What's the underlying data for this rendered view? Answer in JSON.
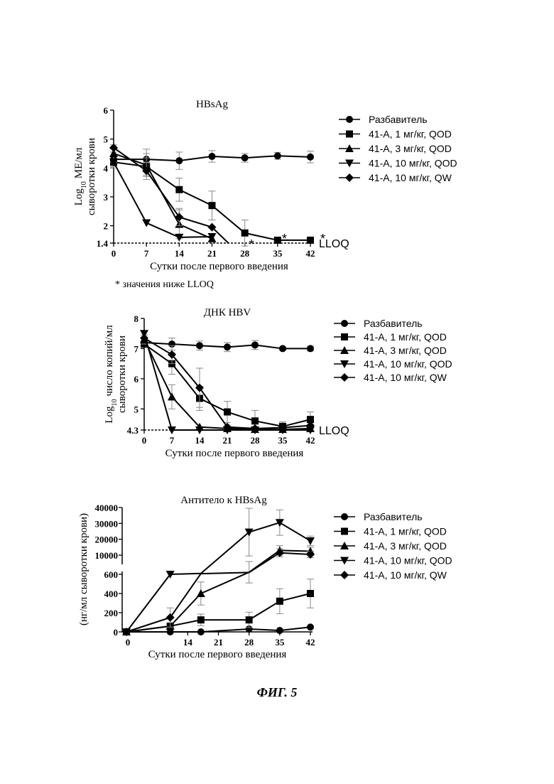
{
  "figure_caption": "ФИГ. 5",
  "chart_data": [
    {
      "type": "line",
      "title": "HBsAg",
      "ylabel_main": "ME/мл",
      "ylabel_prefix": "Log",
      "ylabel_sub": "10",
      "ylabel2": "сыворотки крови",
      "xlabel": "Сутки после первого введения",
      "footnote": "* значения ниже LLOQ",
      "lloq_label": "LLOQ",
      "x": [
        0,
        7,
        14,
        21,
        28,
        35,
        42
      ],
      "xticks": [
        "0",
        "7",
        "14",
        "21",
        "28",
        "35",
        "42"
      ],
      "yticks": [
        "1.4",
        "2",
        "3",
        "4",
        "5",
        "6"
      ],
      "ylim": [
        1.4,
        6
      ],
      "lloq": 1.4,
      "series": [
        {
          "name": "Разбавитель",
          "marker": "circle",
          "x": [
            0,
            7,
            14,
            21,
            28,
            35,
            42
          ],
          "values": [
            4.3,
            4.3,
            4.25,
            4.4,
            4.35,
            4.42,
            4.38
          ],
          "err": [
            0.25,
            0.35,
            0.3,
            0.2,
            0.15,
            0.12,
            0.2
          ]
        },
        {
          "name": "41-А, 1 мг/кг, QOD",
          "marker": "square",
          "x": [
            0,
            7,
            14,
            21,
            28,
            35,
            42
          ],
          "values": [
            4.2,
            4.05,
            3.25,
            2.7,
            1.75,
            1.5,
            1.5
          ],
          "err": [
            0.2,
            0.3,
            0.4,
            0.5,
            0.45,
            0.1,
            0.05
          ]
        },
        {
          "name": "41-А, 3 мг/кг, QOD",
          "marker": "triangle-up",
          "x": [
            0,
            7,
            14,
            21
          ],
          "values": [
            4.5,
            4.1,
            2.05,
            1.55
          ],
          "err": [
            0.3,
            0.4,
            0.5,
            0
          ]
        },
        {
          "name": "41-А, 10 мг/кг, QOD",
          "marker": "triangle-down",
          "x": [
            0,
            7,
            14,
            21
          ],
          "values": [
            4.2,
            2.1,
            1.6,
            1.62
          ],
          "err": [
            0,
            0,
            0,
            0
          ]
        },
        {
          "name": "41-А, 10 мг/кг, QW",
          "marker": "diamond",
          "x": [
            0,
            7,
            14,
            21,
            24.5
          ],
          "values": [
            4.7,
            3.9,
            2.3,
            1.95,
            1.4
          ],
          "err": [
            0,
            0.3,
            0.3,
            0,
            0
          ]
        }
      ],
      "below_lloq_marks": [
        {
          "x": 28,
          "label": "*"
        },
        {
          "x": 35,
          "label": "*"
        },
        {
          "x": 42,
          "label": "*"
        }
      ]
    },
    {
      "type": "line",
      "title": "ДНК HBV",
      "ylabel_main": "число копий/мл",
      "ylabel_prefix": "Log",
      "ylabel_sub": "10",
      "ylabel2": "сыворотки крови",
      "xlabel": "Сутки после первого введения",
      "lloq_label": "LLOQ",
      "x": [
        0,
        7,
        14,
        21,
        28,
        35,
        42
      ],
      "xticks": [
        "0",
        "7",
        "14",
        "21",
        "28",
        "35",
        "42"
      ],
      "yticks": [
        "4.3",
        "5",
        "6",
        "7",
        "8"
      ],
      "ylim": [
        4.3,
        8
      ],
      "lloq": 4.3,
      "series": [
        {
          "name": "Разбавитель",
          "marker": "circle",
          "x": [
            0,
            7,
            14,
            21,
            28,
            35,
            42
          ],
          "values": [
            7.2,
            7.15,
            7.1,
            7.05,
            7.12,
            7.0,
            7.0
          ],
          "err": [
            0.15,
            0.2,
            0.15,
            0.15,
            0.15,
            0.05,
            0.08
          ]
        },
        {
          "name": "41-А, 1 мг/кг, QOD",
          "marker": "square",
          "x": [
            0,
            7,
            14,
            21,
            28,
            35,
            42
          ],
          "values": [
            7.15,
            6.5,
            5.35,
            4.9,
            4.6,
            4.42,
            4.65
          ],
          "err": [
            0.1,
            0.35,
            0.4,
            0.35,
            0.35,
            0.15,
            0.25
          ]
        },
        {
          "name": "41-А, 3 мг/кг, QOD",
          "marker": "triangle-up",
          "x": [
            0,
            7,
            14,
            21,
            28,
            35,
            42
          ],
          "values": [
            7.3,
            5.4,
            4.4,
            4.35,
            4.32,
            4.32,
            4.35
          ],
          "err": [
            0.15,
            0.4,
            0,
            0,
            0,
            0,
            0
          ]
        },
        {
          "name": "41-А, 10 мг/кг, QOD",
          "marker": "triangle-down",
          "x": [
            0,
            7,
            14,
            21,
            28,
            35,
            42
          ],
          "values": [
            7.5,
            4.3,
            4.3,
            4.3,
            4.3,
            4.3,
            4.3
          ],
          "err": [
            0,
            0,
            0,
            0,
            0,
            0,
            0
          ]
        },
        {
          "name": "41-А, 10 мг/кг, QW",
          "marker": "diamond",
          "x": [
            0,
            7,
            14,
            21,
            28,
            35,
            42
          ],
          "values": [
            7.35,
            6.8,
            5.7,
            4.4,
            4.35,
            4.38,
            4.45
          ],
          "err": [
            0,
            0.3,
            0.65,
            0,
            0,
            0,
            0
          ]
        }
      ]
    },
    {
      "type": "line",
      "title": "Антитело к HBsAg",
      "ylabel": "(нг/мл сыворотки крови)",
      "xlabel": "Сутки после первого введения",
      "x": [
        0,
        7,
        14,
        21,
        28,
        35,
        42
      ],
      "xticks": [
        "0",
        "14",
        "21",
        "28",
        "35",
        "42"
      ],
      "yticks_lower": [
        "0",
        "200",
        "400",
        "600"
      ],
      "yticks_upper": [
        "10000",
        "20000",
        "30000",
        "40000"
      ],
      "ylim_lower": [
        0,
        600
      ],
      "ylim_upper": [
        6000,
        40000
      ],
      "axis_break": true,
      "series": [
        {
          "name": "Разбавитель",
          "marker": "circle",
          "x": [
            0,
            10,
            17,
            28,
            35,
            42
          ],
          "values": [
            0,
            0,
            0,
            30,
            15,
            50
          ],
          "err": [
            0,
            0,
            0,
            0,
            0,
            0
          ]
        },
        {
          "name": "41-А, 1 мг/кг, QOD",
          "marker": "square",
          "x": [
            0,
            10,
            17,
            28,
            35,
            42
          ],
          "values": [
            0,
            60,
            125,
            125,
            320,
            400
          ],
          "err": [
            0,
            0,
            60,
            80,
            130,
            150
          ]
        },
        {
          "name": "41-А, 3 мг/кг, QOD",
          "marker": "triangle-up",
          "x": [
            0,
            10,
            17,
            28,
            35,
            42
          ],
          "values": [
            0,
            60,
            400,
            5000,
            13000,
            12500
          ],
          "err": [
            0,
            0,
            120,
            1000,
            3000,
            2500
          ]
        },
        {
          "name": "41-А, 10 мг/кг, QOD",
          "marker": "triangle-down",
          "x": [
            0,
            10,
            17,
            28,
            35,
            42
          ],
          "values": [
            0,
            600,
            2500,
            24500,
            30500,
            19000
          ],
          "err": [
            0,
            0,
            0,
            15000,
            8000,
            3000
          ]
        },
        {
          "name": "41-А, 10 мг/кг, QW",
          "marker": "diamond",
          "x": [
            0,
            10,
            17,
            28,
            35,
            42
          ],
          "values": [
            0,
            150,
            2000,
            4500,
            11500,
            10500
          ],
          "err": [
            0,
            100,
            0,
            0,
            2500,
            2000
          ]
        }
      ]
    }
  ]
}
